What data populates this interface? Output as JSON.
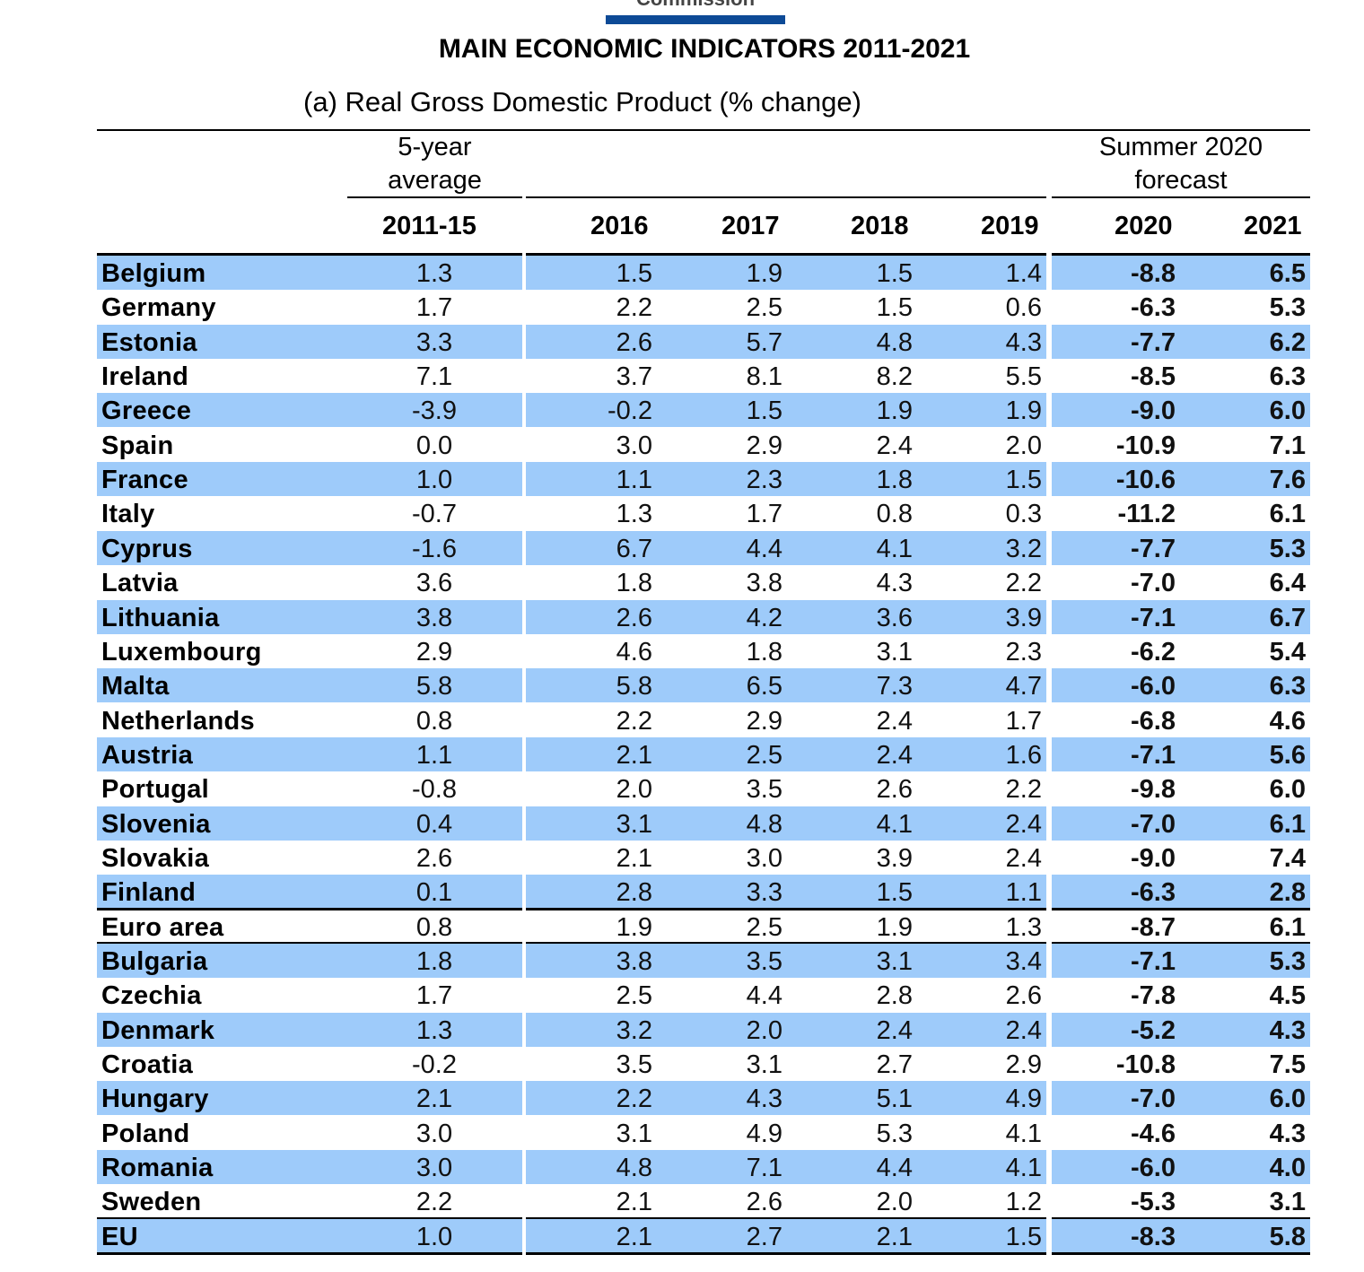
{
  "logo": {
    "text": "Commission",
    "bar_color": "#0d4a96"
  },
  "title": "MAIN ECONOMIC INDICATORS 2011-2021",
  "subtitle": "(a) Real Gross Domestic Product (% change)",
  "headers": {
    "avg_group": [
      "5-year",
      "average"
    ],
    "forecast_group": [
      "Summer 2020",
      "forecast"
    ],
    "years": [
      "2011-15",
      "2016",
      "2017",
      "2018",
      "2019",
      "2020",
      "2021"
    ]
  },
  "row_color": "#9ecbfa",
  "rows": [
    {
      "country": "Belgium",
      "values": [
        "1.3",
        "1.5",
        "1.9",
        "1.5",
        "1.4",
        "-8.8",
        "6.5"
      ]
    },
    {
      "country": "Germany",
      "values": [
        "1.7",
        "2.2",
        "2.5",
        "1.5",
        "0.6",
        "-6.3",
        "5.3"
      ]
    },
    {
      "country": "Estonia",
      "values": [
        "3.3",
        "2.6",
        "5.7",
        "4.8",
        "4.3",
        "-7.7",
        "6.2"
      ]
    },
    {
      "country": "Ireland",
      "values": [
        "7.1",
        "3.7",
        "8.1",
        "8.2",
        "5.5",
        "-8.5",
        "6.3"
      ]
    },
    {
      "country": "Greece",
      "values": [
        "-3.9",
        "-0.2",
        "1.5",
        "1.9",
        "1.9",
        "-9.0",
        "6.0"
      ]
    },
    {
      "country": "Spain",
      "values": [
        "0.0",
        "3.0",
        "2.9",
        "2.4",
        "2.0",
        "-10.9",
        "7.1"
      ]
    },
    {
      "country": "France",
      "values": [
        "1.0",
        "1.1",
        "2.3",
        "1.8",
        "1.5",
        "-10.6",
        "7.6"
      ]
    },
    {
      "country": "Italy",
      "values": [
        "-0.7",
        "1.3",
        "1.7",
        "0.8",
        "0.3",
        "-11.2",
        "6.1"
      ]
    },
    {
      "country": "Cyprus",
      "values": [
        "-1.6",
        "6.7",
        "4.4",
        "4.1",
        "3.2",
        "-7.7",
        "5.3"
      ]
    },
    {
      "country": "Latvia",
      "values": [
        "3.6",
        "1.8",
        "3.8",
        "4.3",
        "2.2",
        "-7.0",
        "6.4"
      ]
    },
    {
      "country": "Lithuania",
      "values": [
        "3.8",
        "2.6",
        "4.2",
        "3.6",
        "3.9",
        "-7.1",
        "6.7"
      ]
    },
    {
      "country": "Luxembourg",
      "values": [
        "2.9",
        "4.6",
        "1.8",
        "3.1",
        "2.3",
        "-6.2",
        "5.4"
      ]
    },
    {
      "country": "Malta",
      "values": [
        "5.8",
        "5.8",
        "6.5",
        "7.3",
        "4.7",
        "-6.0",
        "6.3"
      ]
    },
    {
      "country": "Netherlands",
      "values": [
        "0.8",
        "2.2",
        "2.9",
        "2.4",
        "1.7",
        "-6.8",
        "4.6"
      ]
    },
    {
      "country": "Austria",
      "values": [
        "1.1",
        "2.1",
        "2.5",
        "2.4",
        "1.6",
        "-7.1",
        "5.6"
      ]
    },
    {
      "country": "Portugal",
      "values": [
        "-0.8",
        "2.0",
        "3.5",
        "2.6",
        "2.2",
        "-9.8",
        "6.0"
      ]
    },
    {
      "country": "Slovenia",
      "values": [
        "0.4",
        "3.1",
        "4.8",
        "4.1",
        "2.4",
        "-7.0",
        "6.1"
      ]
    },
    {
      "country": "Slovakia",
      "values": [
        "2.6",
        "2.1",
        "3.0",
        "3.9",
        "2.4",
        "-9.0",
        "7.4"
      ]
    },
    {
      "country": "Finland",
      "values": [
        "0.1",
        "2.8",
        "3.3",
        "1.5",
        "1.1",
        "-6.3",
        "2.8"
      ]
    },
    {
      "country": "Euro area",
      "values": [
        "0.8",
        "1.9",
        "2.5",
        "1.9",
        "1.3",
        "-8.7",
        "6.1"
      ]
    },
    {
      "country": "Bulgaria",
      "values": [
        "1.8",
        "3.8",
        "3.5",
        "3.1",
        "3.4",
        "-7.1",
        "5.3"
      ]
    },
    {
      "country": "Czechia",
      "values": [
        "1.7",
        "2.5",
        "4.4",
        "2.8",
        "2.6",
        "-7.8",
        "4.5"
      ]
    },
    {
      "country": "Denmark",
      "values": [
        "1.3",
        "3.2",
        "2.0",
        "2.4",
        "2.4",
        "-5.2",
        "4.3"
      ]
    },
    {
      "country": "Croatia",
      "values": [
        "-0.2",
        "3.5",
        "3.1",
        "2.7",
        "2.9",
        "-10.8",
        "7.5"
      ]
    },
    {
      "country": "Hungary",
      "values": [
        "2.1",
        "2.2",
        "4.3",
        "5.1",
        "4.9",
        "-7.0",
        "6.0"
      ]
    },
    {
      "country": "Poland",
      "values": [
        "3.0",
        "3.1",
        "4.9",
        "5.3",
        "4.1",
        "-4.6",
        "4.3"
      ]
    },
    {
      "country": "Romania",
      "values": [
        "3.0",
        "4.8",
        "7.1",
        "4.4",
        "4.1",
        "-6.0",
        "4.0"
      ]
    },
    {
      "country": "Sweden",
      "values": [
        "2.2",
        "2.1",
        "2.6",
        "2.0",
        "1.2",
        "-5.3",
        "3.1"
      ]
    },
    {
      "country": "EU",
      "values": [
        "1.0",
        "2.1",
        "2.7",
        "2.1",
        "1.5",
        "-8.3",
        "5.8"
      ]
    }
  ]
}
